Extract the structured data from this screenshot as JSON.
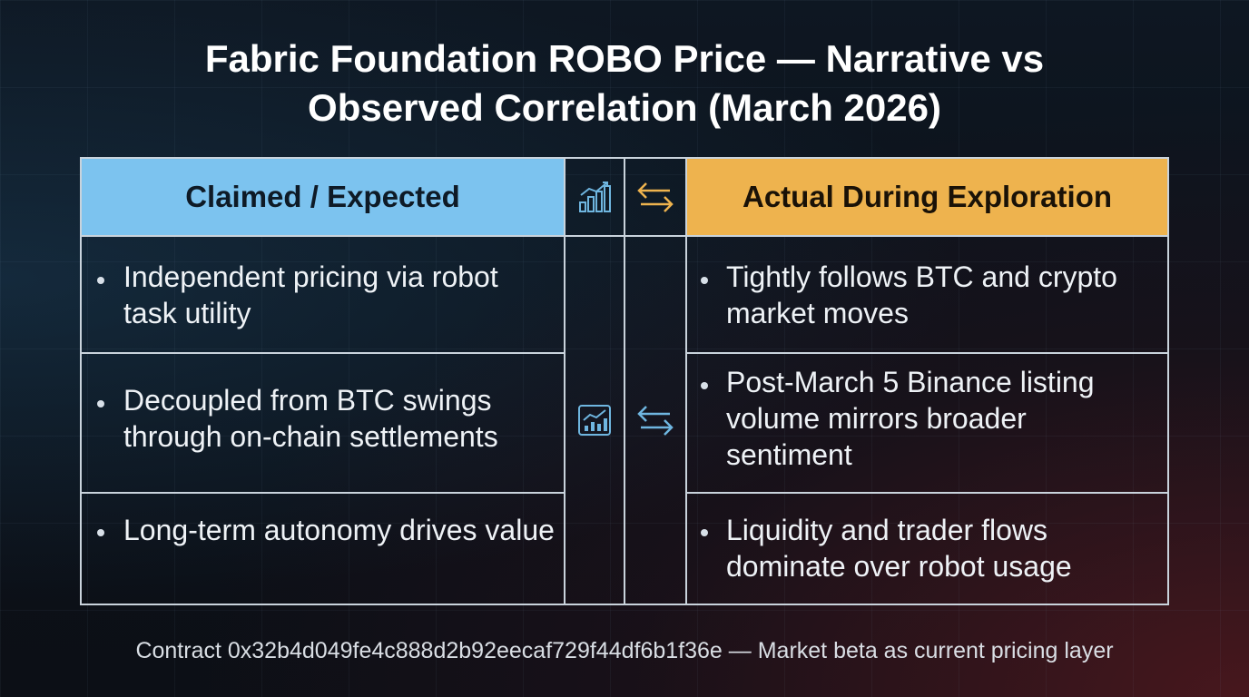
{
  "title": {
    "line1": "Fabric Foundation ROBO Price — Narrative vs",
    "line2": "Observed Correlation (March 2026)"
  },
  "table": {
    "left_header": "Claimed / Expected",
    "right_header": "Actual During Exploration",
    "header_icons": [
      "bar-chart-icon",
      "swap-arrows-icon"
    ],
    "middle_icons": [
      "line-chart-icon",
      "swap-arrows-icon"
    ],
    "left_items": [
      "Independent pricing via robot task utility",
      "Decoupled from BTC swings through on-chain settlements",
      "Long-term autonomy drives value"
    ],
    "right_items": [
      "Tightly follows BTC and crypto market moves",
      "Post-March 5 Binance listing volume mirrors broader sentiment",
      "Liquidity and trader flows dominate over robot usage"
    ],
    "colors": {
      "left_header_bg": "#7cc3ef",
      "right_header_bg": "#eeb34e",
      "icon_blue": "#6fb6e0",
      "icon_orange": "#eeb34e"
    }
  },
  "footer": "Contract 0x32b4d049fe4c888d2b92eecaf729f44df6b1f36e — Market beta as current pricing layer"
}
